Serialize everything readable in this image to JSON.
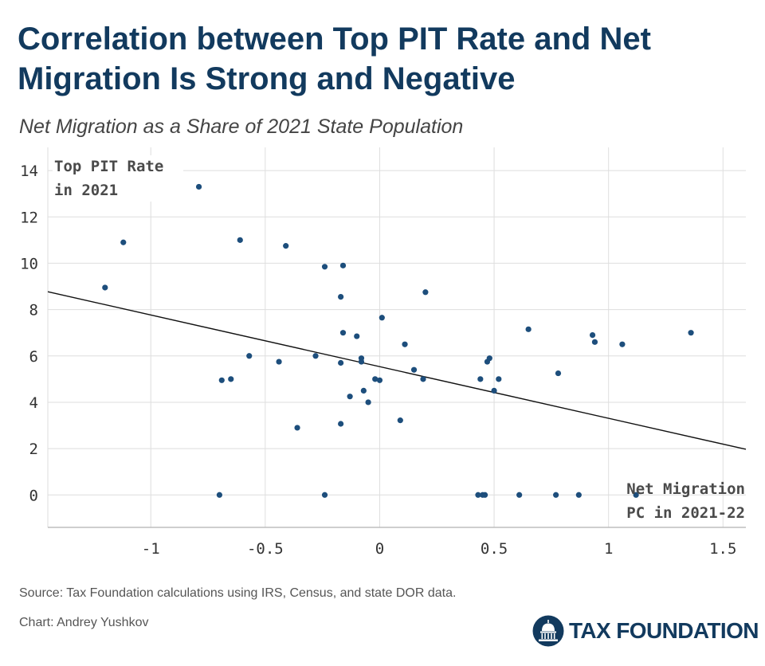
{
  "header": {
    "title": "Correlation between Top PIT Rate and Net Migration Is Strong and Negative",
    "subtitle": "Net Migration as a Share of 2021 State Population"
  },
  "chart_data": {
    "type": "scatter",
    "ylabel_lines": [
      "Top PIT Rate",
      "in 2021"
    ],
    "xlabel_lines": [
      "Net Migration",
      "PC in 2021-22"
    ],
    "xlim": [
      -1.45,
      1.6
    ],
    "ylim": [
      -1.4,
      15
    ],
    "xticks": [
      -1,
      -0.5,
      0,
      0.5,
      1,
      1.5
    ],
    "xtick_labels": [
      "-1",
      "-0.5",
      "0",
      "0.5",
      "1",
      "1.5"
    ],
    "yticks": [
      0,
      2,
      4,
      6,
      8,
      10,
      12,
      14
    ],
    "ytick_labels": [
      "0",
      "2",
      "4",
      "6",
      "8",
      "10",
      "12",
      "14"
    ],
    "grid": true,
    "point_color": "#1d4e7c",
    "trend_color": "#111111",
    "points": [
      {
        "x": -1.2,
        "y": 8.95
      },
      {
        "x": -1.12,
        "y": 10.9
      },
      {
        "x": -0.79,
        "y": 13.3
      },
      {
        "x": -0.61,
        "y": 11.0
      },
      {
        "x": -0.41,
        "y": 10.75
      },
      {
        "x": -0.24,
        "y": 9.85
      },
      {
        "x": -0.16,
        "y": 9.9
      },
      {
        "x": -0.17,
        "y": 8.55
      },
      {
        "x": 0.2,
        "y": 8.75
      },
      {
        "x": 0.01,
        "y": 7.65
      },
      {
        "x": -0.16,
        "y": 7.0
      },
      {
        "x": -0.1,
        "y": 6.85
      },
      {
        "x": 0.65,
        "y": 7.15
      },
      {
        "x": 0.93,
        "y": 6.9
      },
      {
        "x": 0.94,
        "y": 6.6
      },
      {
        "x": 1.06,
        "y": 6.5
      },
      {
        "x": 1.36,
        "y": 7.0
      },
      {
        "x": 0.11,
        "y": 6.5
      },
      {
        "x": -0.57,
        "y": 6.0
      },
      {
        "x": -0.44,
        "y": 5.75
      },
      {
        "x": -0.28,
        "y": 6.0
      },
      {
        "x": -0.08,
        "y": 5.9
      },
      {
        "x": -0.08,
        "y": 5.75
      },
      {
        "x": -0.17,
        "y": 5.7
      },
      {
        "x": 0.47,
        "y": 5.75
      },
      {
        "x": 0.48,
        "y": 5.9
      },
      {
        "x": 0.15,
        "y": 5.4
      },
      {
        "x": 0.78,
        "y": 5.25
      },
      {
        "x": -0.69,
        "y": 4.95
      },
      {
        "x": -0.65,
        "y": 5.0
      },
      {
        "x": -0.02,
        "y": 5.0
      },
      {
        "x": 0.0,
        "y": 4.95
      },
      {
        "x": 0.19,
        "y": 5.0
      },
      {
        "x": 0.44,
        "y": 5.0
      },
      {
        "x": 0.52,
        "y": 5.0
      },
      {
        "x": -0.07,
        "y": 4.5
      },
      {
        "x": 0.5,
        "y": 4.5
      },
      {
        "x": -0.13,
        "y": 4.25
      },
      {
        "x": -0.05,
        "y": 4.0
      },
      {
        "x": 0.09,
        "y": 3.22
      },
      {
        "x": -0.17,
        "y": 3.07
      },
      {
        "x": -0.36,
        "y": 2.9
      },
      {
        "x": -0.7,
        "y": 0.0
      },
      {
        "x": -0.24,
        "y": 0.0
      },
      {
        "x": 0.43,
        "y": 0.0
      },
      {
        "x": 0.45,
        "y": 0.0
      },
      {
        "x": 0.46,
        "y": 0.0
      },
      {
        "x": 0.61,
        "y": 0.0
      },
      {
        "x": 0.77,
        "y": 0.0
      },
      {
        "x": 0.87,
        "y": 0.0
      },
      {
        "x": 1.12,
        "y": 0.0
      }
    ],
    "trendline": {
      "x": [
        -1.45,
        1.6
      ],
      "y": [
        8.77,
        1.97
      ]
    }
  },
  "footer": {
    "source": "Source: Tax Foundation calculations using IRS, Census, and state DOR data.",
    "credit": "Chart: Andrey Yushkov"
  },
  "logo": {
    "text": "TAX FOUNDATION",
    "icon": "capitol-dome-icon",
    "color": "#123a5e"
  }
}
